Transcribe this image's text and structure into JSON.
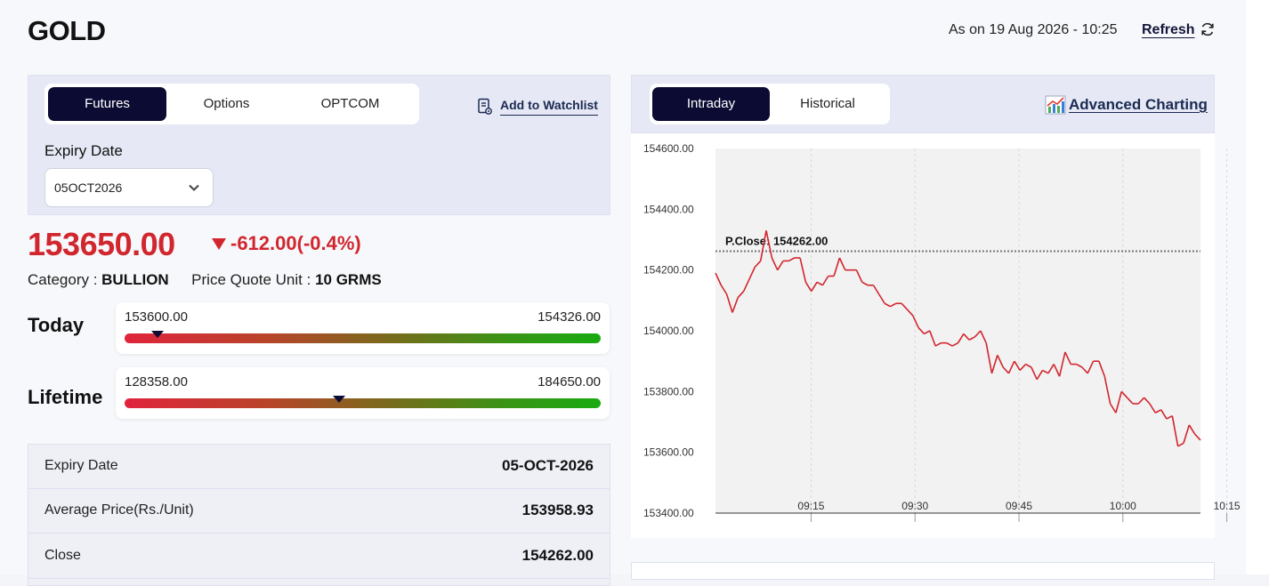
{
  "header": {
    "title": "GOLD",
    "as_on": "As on 19 Aug 2026 - 10:25",
    "refresh_label": "Refresh"
  },
  "left": {
    "tabs": [
      "Futures",
      "Options",
      "OPTCOM"
    ],
    "active_tab": "Futures",
    "watchlist_label": "Add to Watchlist",
    "expiry_label": "Expiry Date",
    "expiry_selected": "05OCT2026",
    "price": "153650.00",
    "change": "-612.00(-0.4%)",
    "category_label": "Category : ",
    "category_value": "BULLION",
    "pqu_label": "Price Quote Unit : ",
    "pqu_value": "10 GRMS",
    "today": {
      "label": "Today",
      "low": "153600.00",
      "high": "154326.00",
      "position": 0.07
    },
    "lifetime": {
      "label": "Lifetime",
      "low": "128358.00",
      "high": "184650.00",
      "position": 0.45
    },
    "table": [
      {
        "key": "Expiry Date",
        "value": "05-OCT-2026"
      },
      {
        "key": "Average Price(Rs./Unit)",
        "value": "153958.93"
      },
      {
        "key": "Close",
        "value": "154262.00"
      }
    ]
  },
  "right": {
    "tabs": [
      "Intraday",
      "Historical"
    ],
    "active_tab": "Intraday",
    "advanced_label": "Advanced Charting"
  },
  "colors": {
    "navy": "#0b0b33",
    "down": "#d1262e",
    "up": "#19aa10"
  },
  "chart_data": {
    "type": "line",
    "y_ticks": [
      "154600.00",
      "154400.00",
      "154200.00",
      "154000.00",
      "153800.00",
      "153600.00",
      "153400.00"
    ],
    "ylim": [
      153400,
      154600
    ],
    "x_ticks": [
      "09:15",
      "09:30",
      "09:45",
      "10:00",
      "10:15"
    ],
    "xlim_minutes": [
      0,
      70
    ],
    "x_tick_minutes": [
      13.8,
      28.8,
      43.8,
      58.8,
      73.8
    ],
    "reference": {
      "label": "P.Close: 154262.00",
      "value": 154262
    },
    "series": [
      {
        "values": [
          154190,
          154150,
          154120,
          154060,
          154110,
          154130,
          154170,
          154210,
          154230,
          154330,
          154240,
          154200,
          154230,
          154230,
          154240,
          154240,
          154160,
          154130,
          154160,
          154150,
          154180,
          154180,
          154240,
          154200,
          154200,
          154200,
          154160,
          154150,
          154150,
          154120,
          154090,
          154080,
          154090,
          154090,
          154070,
          154050,
          154010,
          153990,
          154000,
          153950,
          153960,
          153960,
          153950,
          153960,
          153990,
          153970,
          153980,
          154000,
          153960,
          153860,
          153920,
          153880,
          153860,
          153900,
          153870,
          153890,
          153880,
          153840,
          153870,
          153860,
          153890,
          153850,
          153930,
          153890,
          153890,
          153880,
          153860,
          153900,
          153900,
          153850,
          153760,
          153730,
          153800,
          153780,
          153760,
          153760,
          153780,
          153760,
          153730,
          153740,
          153710,
          153720,
          153620,
          153630,
          153690,
          153660,
          153640
        ]
      }
    ]
  }
}
